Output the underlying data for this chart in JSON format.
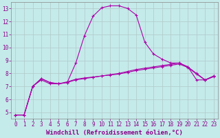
{
  "xlabel": "Windchill (Refroidissement éolien,°C)",
  "background_color": "#c5eaea",
  "line_color": "#aa00aa",
  "grid_color": "#b0c8c8",
  "xlim": [
    -0.5,
    23.5
  ],
  "ylim": [
    4.5,
    13.5
  ],
  "xticks": [
    0,
    1,
    2,
    3,
    4,
    5,
    6,
    7,
    8,
    9,
    10,
    11,
    12,
    13,
    14,
    15,
    16,
    17,
    18,
    19,
    20,
    21,
    22,
    23
  ],
  "yticks": [
    5,
    6,
    7,
    8,
    9,
    10,
    11,
    12,
    13
  ],
  "line1_x": [
    0,
    1,
    2,
    3,
    4,
    5,
    6,
    7,
    8,
    9,
    10,
    11,
    12,
    13,
    14,
    15,
    16,
    17,
    18,
    19,
    20,
    21,
    22,
    23
  ],
  "line1_y": [
    4.8,
    4.8,
    7.0,
    7.5,
    7.2,
    7.2,
    7.3,
    8.8,
    10.9,
    12.4,
    13.05,
    13.2,
    13.2,
    13.0,
    12.5,
    10.4,
    9.5,
    9.1,
    8.8,
    8.8,
    8.5,
    7.5,
    7.5,
    7.8
  ],
  "line2_x": [
    0,
    1,
    2,
    3,
    4,
    5,
    6,
    7,
    8,
    9,
    10,
    11,
    12,
    13,
    14,
    15,
    16,
    17,
    18,
    19,
    20,
    21,
    22,
    23
  ],
  "line2_y": [
    4.8,
    4.8,
    7.0,
    7.6,
    7.3,
    7.2,
    7.3,
    7.5,
    7.6,
    7.7,
    7.8,
    7.9,
    8.0,
    8.15,
    8.3,
    8.4,
    8.5,
    8.6,
    8.7,
    8.8,
    8.5,
    8.0,
    7.5,
    7.8
  ],
  "line3_x": [
    0,
    1,
    2,
    3,
    4,
    5,
    6,
    7,
    8,
    9,
    10,
    11,
    12,
    13,
    14,
    15,
    16,
    17,
    18,
    19,
    20,
    21,
    22,
    23
  ],
  "line3_y": [
    4.8,
    4.8,
    7.0,
    7.6,
    7.3,
    7.2,
    7.35,
    7.55,
    7.65,
    7.72,
    7.8,
    7.88,
    7.95,
    8.08,
    8.22,
    8.32,
    8.42,
    8.52,
    8.62,
    8.72,
    8.45,
    7.95,
    7.48,
    7.75
  ],
  "marker": "+",
  "markersize": 3,
  "linewidth": 0.8,
  "xlabel_fontsize": 6.5,
  "tick_fontsize": 5.5,
  "xlabel_color": "#880088",
  "tick_color": "#880088",
  "spine_color": "#888888"
}
